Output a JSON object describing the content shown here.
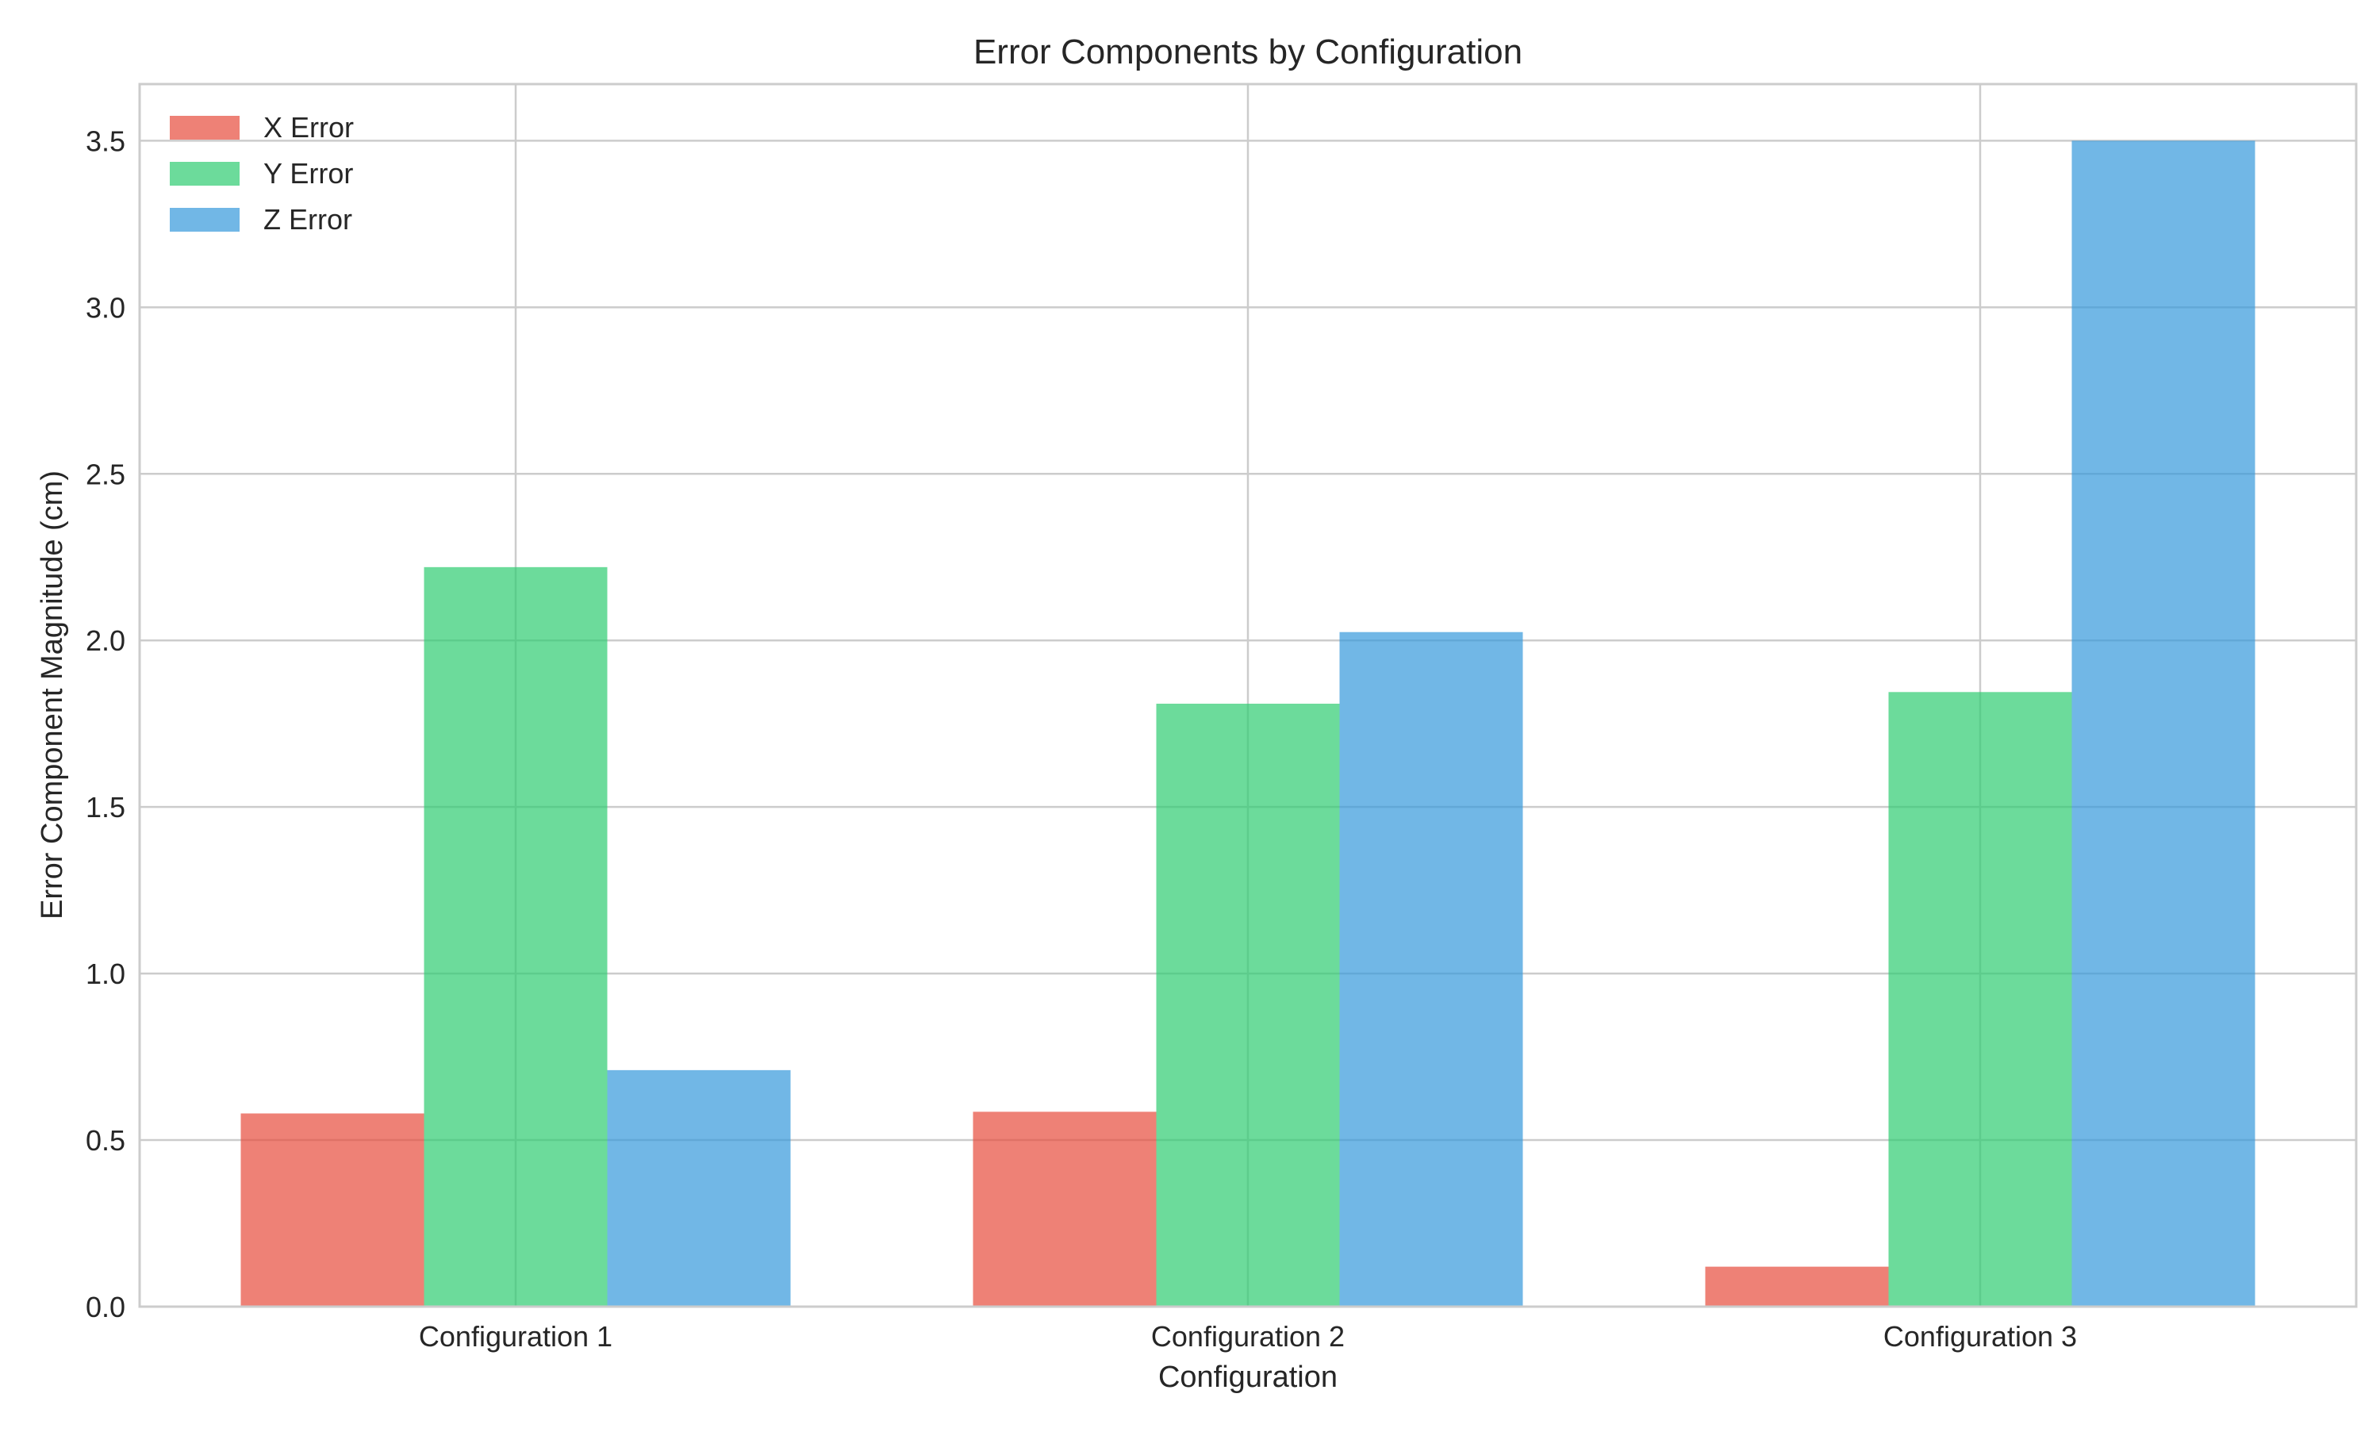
{
  "chart_data": {
    "type": "bar",
    "title": "Error Components by Configuration",
    "xlabel": "Configuration",
    "ylabel": "Error Component Magnitude (cm)",
    "categories": [
      "Configuration 1",
      "Configuration 2",
      "Configuration 3"
    ],
    "series": [
      {
        "name": "X Error",
        "color": "#e74c3c",
        "values": [
          0.58,
          0.585,
          0.12
        ]
      },
      {
        "name": "Y Error",
        "color": "#2ecc71",
        "values": [
          2.22,
          1.81,
          1.845
        ]
      },
      {
        "name": "Z Error",
        "color": "#3498db",
        "values": [
          0.71,
          2.025,
          3.5
        ]
      }
    ],
    "ylim": [
      0,
      3.67
    ],
    "yticks": [
      "0.0",
      "0.5",
      "1.0",
      "1.5",
      "2.0",
      "2.5",
      "3.0",
      "3.5"
    ],
    "grid": true,
    "legend_position": "top-left"
  }
}
